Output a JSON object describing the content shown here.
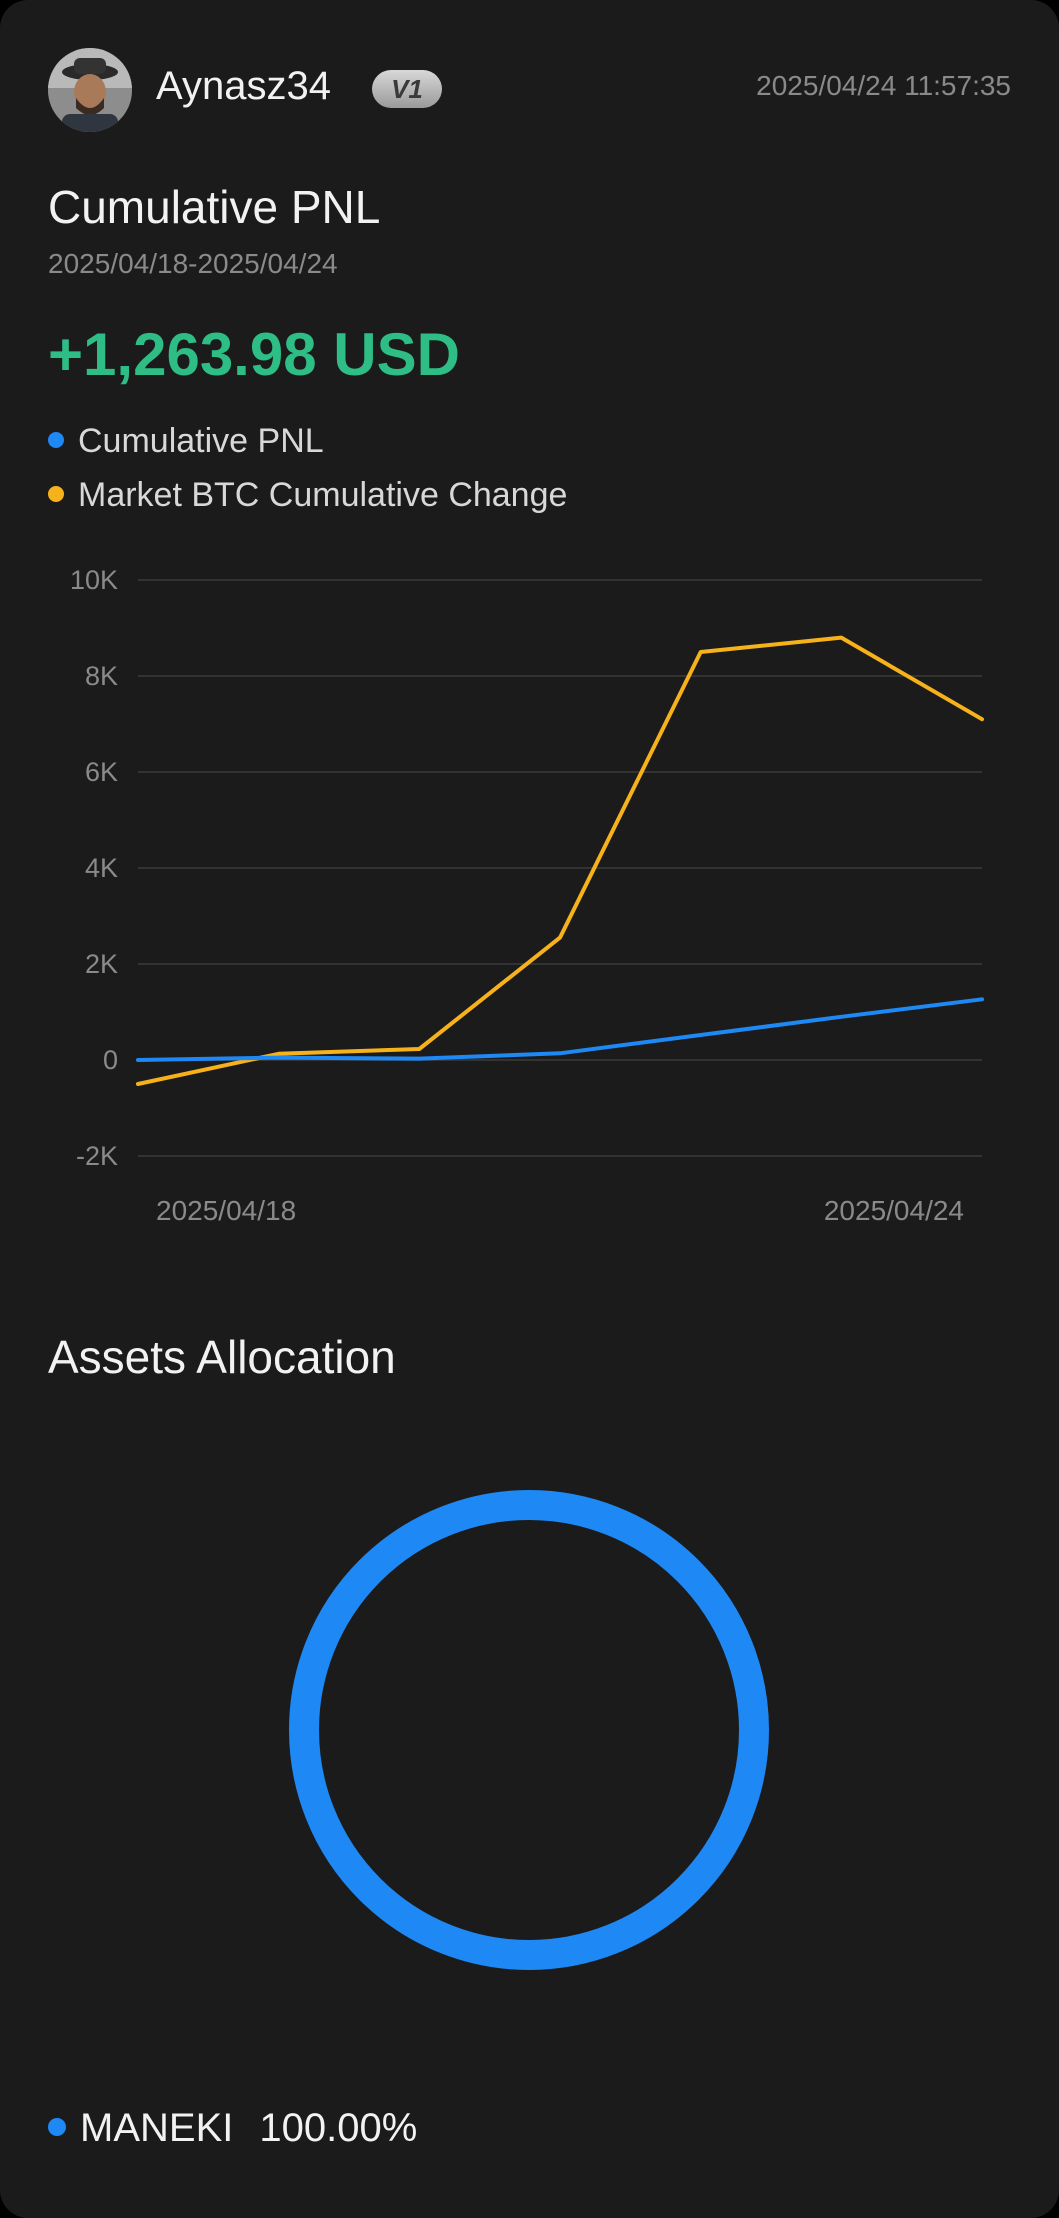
{
  "header": {
    "username": "Aynasz34",
    "badge": "V1",
    "timestamp": "2025/04/24 11:57:35"
  },
  "pnl": {
    "title": "Cumulative PNL",
    "date_range": "2025/04/18-2025/04/24",
    "value": "+1,263.98 USD",
    "value_color": "#2ebd85"
  },
  "legend": [
    {
      "label": "Cumulative PNL",
      "color": "#1e88f5"
    },
    {
      "label": "Market BTC Cumulative Change",
      "color": "#f7b21b"
    }
  ],
  "chart_data": {
    "type": "line",
    "x": [
      "2025/04/18",
      "",
      "",
      "",
      "",
      "",
      "2025/04/24"
    ],
    "x_tick_labels": [
      "2025/04/18",
      "2025/04/24"
    ],
    "y_ticks": [
      -2000,
      0,
      2000,
      4000,
      6000,
      8000,
      10000
    ],
    "y_tick_labels": [
      "-2K",
      "0",
      "2K",
      "4K",
      "6K",
      "8K",
      "10K"
    ],
    "ylim": [
      -2000,
      10000
    ],
    "grid": true,
    "series": [
      {
        "name": "Cumulative PNL",
        "color": "#1e88f5",
        "values": [
          0,
          50,
          30,
          140,
          520,
          900,
          1263.98
        ]
      },
      {
        "name": "Market BTC Cumulative Change",
        "color": "#f7b21b",
        "values": [
          -500,
          130,
          230,
          2550,
          8500,
          8800,
          7100
        ]
      }
    ]
  },
  "assets": {
    "title": "Assets Allocation",
    "items": [
      {
        "name": "MANEKI",
        "percent": "100.00%",
        "fraction": 1.0,
        "color": "#1e88f5"
      }
    ]
  }
}
